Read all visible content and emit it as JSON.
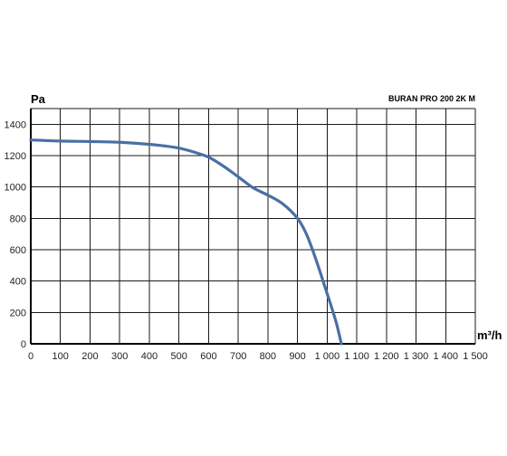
{
  "chart_data": {
    "type": "line",
    "title": "BURAN PRO 200 2K M",
    "xlabel": "m³/h",
    "ylabel": "Pa",
    "xlim": [
      0,
      1500
    ],
    "ylim": [
      0,
      1500
    ],
    "grid": true,
    "x_ticks": [
      0,
      100,
      200,
      300,
      400,
      500,
      600,
      700,
      800,
      900,
      1000,
      1100,
      1200,
      1300,
      1400,
      1500
    ],
    "x_tick_labels": [
      "0",
      "100",
      "200",
      "300",
      "400",
      "500",
      "600",
      "700",
      "800",
      "900",
      "1 000",
      "1 100",
      "1 200",
      "1 300",
      "1 400",
      "1 500"
    ],
    "y_ticks": [
      0,
      200,
      400,
      600,
      800,
      1000,
      1200,
      1400
    ],
    "y_tick_labels": [
      "0",
      "200",
      "400",
      "600",
      "800",
      "1000",
      "1200",
      "1400"
    ],
    "series": [
      {
        "name": "",
        "color": "#4a6fa5",
        "x": [
          0,
          100,
          200,
          300,
          400,
          450,
          500,
          550,
          600,
          650,
          700,
          750,
          800,
          850,
          900,
          930,
          960,
          1000,
          1030,
          1048
        ],
        "y": [
          1300,
          1293,
          1290,
          1285,
          1272,
          1262,
          1248,
          1223,
          1190,
          1133,
          1065,
          995,
          948,
          893,
          800,
          700,
          550,
          320,
          140,
          0
        ]
      }
    ]
  }
}
